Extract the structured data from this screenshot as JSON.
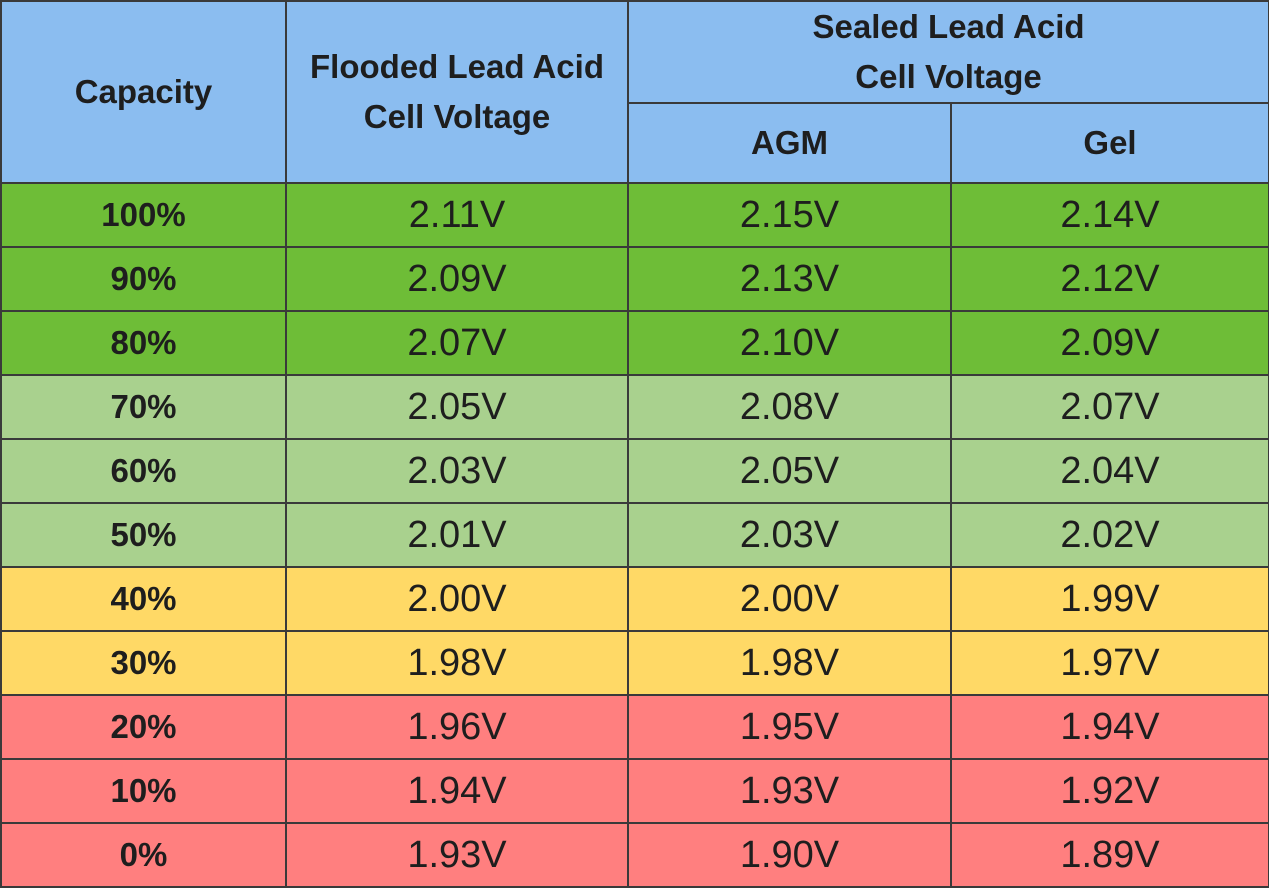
{
  "table": {
    "headers": {
      "capacity": "Capacity",
      "flooded": [
        "Flooded Lead Acid",
        "Cell Voltage"
      ],
      "sealed": [
        "Sealed Lead Acid",
        "Cell Voltage"
      ],
      "agm": "AGM",
      "gel": "Gel"
    },
    "row_colors": {
      "high": "#6ebd37",
      "mid": "#a9d18e",
      "low": "#ffd966",
      "critical": "#ff7f7f",
      "header": "#8bbdf0"
    },
    "rows": [
      {
        "capacity": "100%",
        "flooded": "2.11V",
        "agm": "2.15V",
        "gel": "2.14V",
        "level": "high"
      },
      {
        "capacity": "90%",
        "flooded": "2.09V",
        "agm": "2.13V",
        "gel": "2.12V",
        "level": "high"
      },
      {
        "capacity": "80%",
        "flooded": "2.07V",
        "agm": "2.10V",
        "gel": "2.09V",
        "level": "high"
      },
      {
        "capacity": "70%",
        "flooded": "2.05V",
        "agm": "2.08V",
        "gel": "2.07V",
        "level": "mid"
      },
      {
        "capacity": "60%",
        "flooded": "2.03V",
        "agm": "2.05V",
        "gel": "2.04V",
        "level": "mid"
      },
      {
        "capacity": "50%",
        "flooded": "2.01V",
        "agm": "2.03V",
        "gel": "2.02V",
        "level": "mid"
      },
      {
        "capacity": "40%",
        "flooded": "2.00V",
        "agm": "2.00V",
        "gel": "1.99V",
        "level": "low"
      },
      {
        "capacity": "30%",
        "flooded": "1.98V",
        "agm": "1.98V",
        "gel": "1.97V",
        "level": "low"
      },
      {
        "capacity": "20%",
        "flooded": "1.96V",
        "agm": "1.95V",
        "gel": "1.94V",
        "level": "critical"
      },
      {
        "capacity": "10%",
        "flooded": "1.94V",
        "agm": "1.93V",
        "gel": "1.92V",
        "level": "critical"
      },
      {
        "capacity": "0%",
        "flooded": "1.93V",
        "agm": "1.90V",
        "gel": "1.89V",
        "level": "critical"
      }
    ]
  }
}
